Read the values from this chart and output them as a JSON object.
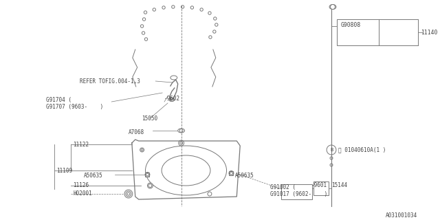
{
  "bg_color": "#ffffff",
  "line_color": "#777777",
  "text_color": "#444444",
  "diagram_id": "A031001034",
  "labels": {
    "REFER_TOFIG": "REFER TOFIG.004-1,3",
    "G91704": "G91704 (",
    "G91707": "G91707 (9603-    )",
    "n9602": "-9602",
    "l15050": "15050",
    "A7068": "A7068",
    "l11122": "11122",
    "l11109": "11109",
    "A50635_L": "A50635",
    "A50635_R": "A50635",
    "l11126": "11126",
    "H02001": "H02001",
    "G91002": "G91002 (",
    "G91017": "G91017 (9602-    )",
    "n9601": "-9601",
    "l15144": "15144",
    "B_label": "Ⓑ 01040610A(1 )",
    "G90808": "G90808",
    "l11140": "11140",
    "diagram_id": "A031001034"
  }
}
